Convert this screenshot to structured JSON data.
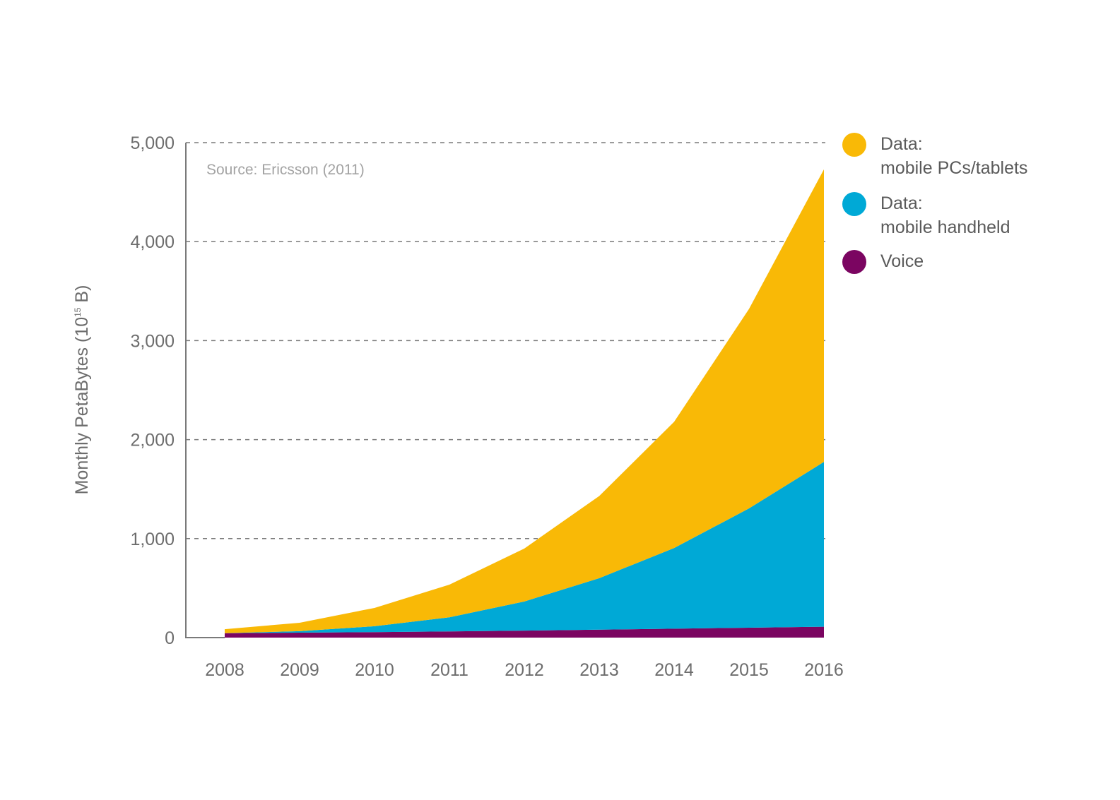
{
  "chart_data": {
    "type": "area",
    "stacked": true,
    "title": "",
    "annotation": "Source: Ericsson (2011)",
    "xlabel": "",
    "ylabel": "Monthly PetaBytes (10",
    "ylabel_superscript": "15",
    "ylabel_suffix": " B)",
    "x": [
      "2008",
      "2009",
      "2010",
      "2011",
      "2012",
      "2013",
      "2014",
      "2015",
      "2016"
    ],
    "ylim": [
      0,
      5000
    ],
    "yticks": [
      0,
      1000,
      2000,
      3000,
      4000,
      5000
    ],
    "ytick_labels": [
      "0",
      "1,000",
      "2,000",
      "3,000",
      "4,000",
      "5,000"
    ],
    "grid": "horizontal-dashed",
    "legend_position": "right",
    "series": [
      {
        "name": "Voice",
        "color": "#7b0561",
        "values": [
          45,
          50,
          55,
          62,
          70,
          80,
          90,
          100,
          110
        ]
      },
      {
        "name": "Data: mobile handheld",
        "color": "#00a9d6",
        "values": [
          0,
          15,
          60,
          143,
          295,
          520,
          815,
          1205,
          1665
        ]
      },
      {
        "name": "Data: mobile PCs/tablets",
        "color": "#f9b906",
        "values": [
          40,
          85,
          185,
          330,
          535,
          830,
          1275,
          2015,
          2955
        ]
      }
    ],
    "legend": [
      {
        "line1": "Data:",
        "line2": "mobile PCs/tablets",
        "color": "#f9b906"
      },
      {
        "line1": "Data:",
        "line2": "mobile handheld",
        "color": "#00a9d6"
      },
      {
        "line1": "Voice",
        "line2": "",
        "color": "#7b0561"
      }
    ]
  }
}
